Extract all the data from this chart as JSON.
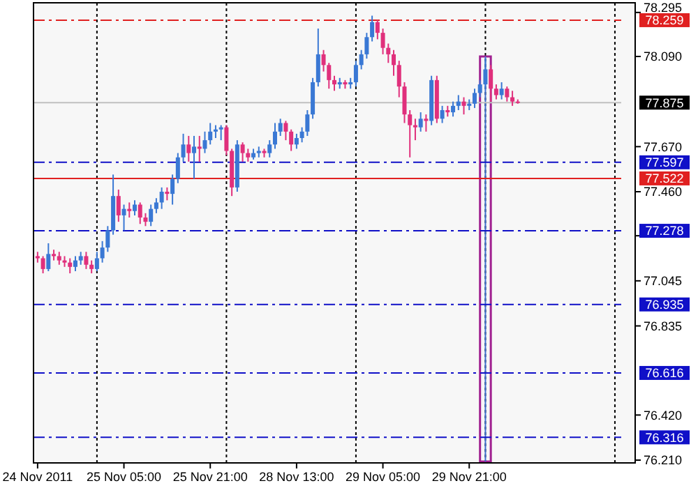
{
  "chart_data": {
    "type": "candlestick",
    "categories": [
      "24 Nov 2011",
      null,
      null,
      null,
      null,
      null,
      null,
      null,
      null,
      null,
      null,
      null,
      null,
      null,
      null,
      null,
      "25 Nov 05:00",
      null,
      null,
      null,
      null,
      null,
      null,
      null,
      null,
      null,
      null,
      null,
      null,
      null,
      null,
      null,
      "25 Nov 21:00",
      null,
      null,
      null,
      null,
      null,
      null,
      null,
      null,
      null,
      null,
      null,
      null,
      null,
      null,
      null,
      "28 Nov 13:00",
      null,
      null,
      null,
      null,
      null,
      null,
      null,
      null,
      null,
      null,
      null,
      null,
      null,
      null,
      null,
      "29 Nov 05:00",
      null,
      null,
      null,
      null,
      null,
      null,
      null,
      null,
      null,
      null,
      null,
      null,
      null,
      null,
      null,
      "29 Nov 21:00",
      null,
      null,
      null,
      null,
      null,
      null,
      null,
      null,
      null,
      null,
      null,
      null,
      null,
      null,
      null,
      null,
      null,
      null,
      null,
      null,
      null,
      null,
      null,
      null,
      null,
      null,
      null,
      null,
      null,
      null
    ],
    "ohlc": [
      [
        77.16,
        77.18,
        77.13,
        77.15
      ],
      [
        77.15,
        77.16,
        77.08,
        77.1
      ],
      [
        77.1,
        77.22,
        77.09,
        77.17
      ],
      [
        77.17,
        77.19,
        77.14,
        77.16
      ],
      [
        77.16,
        77.18,
        77.12,
        77.14
      ],
      [
        77.14,
        77.16,
        77.11,
        77.13
      ],
      [
        77.13,
        77.15,
        77.08,
        77.11
      ],
      [
        77.11,
        77.16,
        77.09,
        77.14
      ],
      [
        77.14,
        77.18,
        77.12,
        77.16
      ],
      [
        77.16,
        77.18,
        77.1,
        77.12
      ],
      [
        77.12,
        77.14,
        77.08,
        77.1
      ],
      [
        77.1,
        77.18,
        77.09,
        77.15
      ],
      [
        77.15,
        77.23,
        77.13,
        77.2
      ],
      [
        77.2,
        77.3,
        77.18,
        77.28
      ],
      [
        77.28,
        77.54,
        77.26,
        77.44
      ],
      [
        77.44,
        77.47,
        77.32,
        77.35
      ],
      [
        77.35,
        77.4,
        77.28,
        77.38
      ],
      [
        77.38,
        77.41,
        77.34,
        77.37
      ],
      [
        77.37,
        77.42,
        77.35,
        77.4
      ],
      [
        77.4,
        77.41,
        77.31,
        77.34
      ],
      [
        77.34,
        77.36,
        77.3,
        77.32
      ],
      [
        77.32,
        77.4,
        77.3,
        77.38
      ],
      [
        77.38,
        77.43,
        77.36,
        77.41
      ],
      [
        77.41,
        77.48,
        77.38,
        77.46
      ],
      [
        77.46,
        77.48,
        77.42,
        77.45
      ],
      [
        77.45,
        77.54,
        77.4,
        77.52
      ],
      [
        77.52,
        77.64,
        77.5,
        77.62
      ],
      [
        77.62,
        77.73,
        77.6,
        77.68
      ],
      [
        77.68,
        77.72,
        77.6,
        77.64
      ],
      [
        77.64,
        77.72,
        77.52,
        77.67
      ],
      [
        77.67,
        77.72,
        77.6,
        77.66
      ],
      [
        77.66,
        77.74,
        77.64,
        77.7
      ],
      [
        77.7,
        77.78,
        77.68,
        77.74
      ],
      [
        77.74,
        77.77,
        77.71,
        77.75
      ],
      [
        77.75,
        77.77,
        77.7,
        77.76
      ],
      [
        77.76,
        77.77,
        77.63,
        77.65
      ],
      [
        77.65,
        77.66,
        77.44,
        77.48
      ],
      [
        77.48,
        77.7,
        77.46,
        77.68
      ],
      [
        77.68,
        77.69,
        77.6,
        77.64
      ],
      [
        77.64,
        77.66,
        77.6,
        77.62
      ],
      [
        77.62,
        77.66,
        77.61,
        77.64
      ],
      [
        77.64,
        77.67,
        77.62,
        77.65
      ],
      [
        77.65,
        77.66,
        77.62,
        77.64
      ],
      [
        77.64,
        77.7,
        77.62,
        77.68
      ],
      [
        77.68,
        77.78,
        77.66,
        77.74
      ],
      [
        77.74,
        77.8,
        77.72,
        77.78
      ],
      [
        77.78,
        77.79,
        77.7,
        77.74
      ],
      [
        77.74,
        77.75,
        77.65,
        77.68
      ],
      [
        77.68,
        77.73,
        77.66,
        77.71
      ],
      [
        77.71,
        77.76,
        77.69,
        77.74
      ],
      [
        77.74,
        77.84,
        77.72,
        77.82
      ],
      [
        77.82,
        77.99,
        77.8,
        77.97
      ],
      [
        77.97,
        78.22,
        77.95,
        78.1
      ],
      [
        78.1,
        78.12,
        78.02,
        78.05
      ],
      [
        78.05,
        78.06,
        77.94,
        77.98
      ],
      [
        77.98,
        78.0,
        77.93,
        77.96
      ],
      [
        77.96,
        77.99,
        77.94,
        77.97
      ],
      [
        77.97,
        77.98,
        77.94,
        77.96
      ],
      [
        77.96,
        77.99,
        77.94,
        77.97
      ],
      [
        77.97,
        78.07,
        77.95,
        78.05
      ],
      [
        78.05,
        78.12,
        78.03,
        78.1
      ],
      [
        78.1,
        78.2,
        78.08,
        78.18
      ],
      [
        78.18,
        78.28,
        78.16,
        78.25
      ],
      [
        78.25,
        78.26,
        78.17,
        78.2
      ],
      [
        78.2,
        78.22,
        78.1,
        78.13
      ],
      [
        78.13,
        78.15,
        78.06,
        78.1
      ],
      [
        78.1,
        78.12,
        78.0,
        78.05
      ],
      [
        78.05,
        78.07,
        77.9,
        77.95
      ],
      [
        77.95,
        77.97,
        77.78,
        77.82
      ],
      [
        77.82,
        77.84,
        77.62,
        77.77
      ],
      [
        77.77,
        77.8,
        77.7,
        77.76
      ],
      [
        77.76,
        77.83,
        77.74,
        77.8
      ],
      [
        77.8,
        77.82,
        77.74,
        77.79
      ],
      [
        77.79,
        78.0,
        77.77,
        77.98
      ],
      [
        77.98,
        78.0,
        77.78,
        77.8
      ],
      [
        77.8,
        77.86,
        77.78,
        77.84
      ],
      [
        77.84,
        77.86,
        77.81,
        77.83
      ],
      [
        77.83,
        77.88,
        77.81,
        77.86
      ],
      [
        77.86,
        77.91,
        77.84,
        77.88
      ],
      [
        77.88,
        77.9,
        77.82,
        77.86
      ],
      [
        77.86,
        77.89,
        77.84,
        77.87
      ],
      [
        77.87,
        77.94,
        77.85,
        77.92
      ],
      [
        77.92,
        77.98,
        77.9,
        77.96
      ],
      [
        77.96,
        78.08,
        77.94,
        78.03
      ],
      [
        78.03,
        78.05,
        77.88,
        77.94
      ],
      [
        77.94,
        77.96,
        77.89,
        77.91
      ],
      [
        77.91,
        77.97,
        77.89,
        77.94
      ],
      [
        77.94,
        77.95,
        77.88,
        77.9
      ],
      [
        77.9,
        77.93,
        77.86,
        77.88
      ],
      [
        77.88,
        77.89,
        77.87,
        77.875
      ],
      null,
      null,
      null,
      null,
      null,
      null,
      null,
      null,
      null,
      null,
      null,
      null,
      null,
      null,
      null,
      null,
      null,
      null,
      null,
      null,
      null
    ],
    "colors": [
      "#e0307c",
      "#e0307c",
      "#3a78d4",
      "#e0307c",
      "#e0307c",
      "#e0307c",
      "#e0307c",
      "#3a78d4",
      "#3a78d4",
      "#e0307c",
      "#e0307c",
      "#3a78d4",
      "#3a78d4",
      "#3a78d4",
      "#3a78d4",
      "#e0307c",
      "#3a78d4",
      "#e0307c",
      "#3a78d4",
      "#e0307c",
      "#e0307c",
      "#3a78d4",
      "#3a78d4",
      "#3a78d4",
      "#e0307c",
      "#3a78d4",
      "#3a78d4",
      "#3a78d4",
      "#e0307c",
      "#3a78d4",
      "#e0307c",
      "#3a78d4",
      "#3a78d4",
      "#3a78d4",
      "#3a78d4",
      "#e0307c",
      "#e0307c",
      "#3a78d4",
      "#e0307c",
      "#e0307c",
      "#3a78d4",
      "#3a78d4",
      "#e0307c",
      "#3a78d4",
      "#3a78d4",
      "#3a78d4",
      "#e0307c",
      "#e0307c",
      "#3a78d4",
      "#3a78d4",
      "#3a78d4",
      "#3a78d4",
      "#3a78d4",
      "#e0307c",
      "#e0307c",
      "#e0307c",
      "#3a78d4",
      "#e0307c",
      "#3a78d4",
      "#3a78d4",
      "#3a78d4",
      "#3a78d4",
      "#3a78d4",
      "#e0307c",
      "#e0307c",
      "#e0307c",
      "#e0307c",
      "#e0307c",
      "#e0307c",
      "#e0307c",
      "#e0307c",
      "#3a78d4",
      "#e0307c",
      "#3a78d4",
      "#e0307c",
      "#3a78d4",
      "#e0307c",
      "#3a78d4",
      "#3a78d4",
      "#e0307c",
      "#3a78d4",
      "#3a78d4",
      "#3a78d4",
      "#3a78d4",
      "#e0307c",
      "#e0307c",
      "#3a78d4",
      "#e0307c",
      "#e0307c",
      "#e0307c",
      null,
      null,
      null,
      null,
      null,
      null,
      null,
      null,
      null,
      null,
      null,
      null,
      null,
      null,
      null,
      null,
      null,
      null,
      null,
      null,
      null
    ],
    "ylim": [
      76.197,
      78.34
    ],
    "yticks": [
      {
        "value": 78.295,
        "label": "78.295"
      },
      {
        "value": 78.09,
        "label": "78.090"
      },
      {
        "value": 77.67,
        "label": "77.670"
      },
      {
        "value": 77.46,
        "label": "77.460"
      },
      {
        "value": 77.255,
        "label": null
      },
      {
        "value": 77.045,
        "label": "77.045"
      },
      {
        "value": 76.835,
        "label": "76.835"
      },
      {
        "value": 76.42,
        "label": "76.420"
      },
      {
        "value": 76.21,
        "label": "76.210"
      }
    ],
    "ref_lines": [
      {
        "axis": "y",
        "value": 78.259,
        "label": "78.259",
        "color": "#e02020",
        "line_style": "dashed"
      },
      {
        "axis": "y",
        "value": 77.875,
        "label": "77.875",
        "color": "#c0c0c0",
        "line_style": "solid"
      },
      {
        "axis": "y",
        "value": 77.597,
        "label": "77.597",
        "color": "#1010c8",
        "line_style": "dashed"
      },
      {
        "axis": "y",
        "value": 77.522,
        "label": "77.522",
        "color": "#e02020",
        "line_style": "solid"
      },
      {
        "axis": "y",
        "value": 77.278,
        "label": "77.278",
        "color": "#1010c8",
        "line_style": "dashed"
      },
      {
        "axis": "y",
        "value": 76.935,
        "label": "76.935",
        "color": "#1010c8",
        "line_style": "dashed"
      },
      {
        "axis": "y",
        "value": 76.616,
        "label": "76.616",
        "color": "#1010c8",
        "line_style": "dashed"
      },
      {
        "axis": "y",
        "value": 76.316,
        "label": "76.316",
        "color": "#1010c8",
        "line_style": "dashed"
      }
    ],
    "grid": "x"
  }
}
